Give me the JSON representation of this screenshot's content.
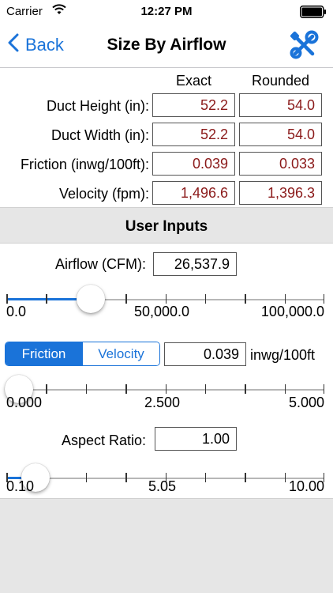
{
  "status_bar": {
    "carrier": "Carrier",
    "time": "12:27 PM",
    "icons": [
      "wifi-icon",
      "battery-icon"
    ]
  },
  "nav": {
    "back_label": "Back",
    "title": "Size By Airflow",
    "tools_icon": "wrench-screwdriver-icon",
    "accent_color": "#1a73d9"
  },
  "results": {
    "columns": [
      "Exact",
      "Rounded"
    ],
    "rows": [
      {
        "label": "Duct Height (in):",
        "exact": "52.2",
        "rounded": "54.0"
      },
      {
        "label": "Duct Width (in):",
        "exact": "52.2",
        "rounded": "54.0"
      },
      {
        "label": "Friction (inwg/100ft):",
        "exact": "0.039",
        "rounded": "0.033"
      },
      {
        "label": "Velocity (fpm):",
        "exact": "1,496.6",
        "rounded": "1,396.3"
      }
    ],
    "value_color": "#8b1a1a"
  },
  "inputs": {
    "section_title": "User Inputs",
    "airflow": {
      "label": "Airflow (CFM):",
      "value": "26,537.9",
      "slider": {
        "min_label": "0.0",
        "mid_label": "50,000.0",
        "max_label": "100,000.0",
        "min": 0,
        "max": 100000,
        "value": 26537.9
      }
    },
    "mode": {
      "options": [
        "Friction",
        "Velocity"
      ],
      "selected": "Friction",
      "value": "0.039",
      "unit": "inwg/100ft",
      "slider": {
        "min_label": "0.000",
        "mid_label": "2.500",
        "max_label": "5.000",
        "min": 0,
        "max": 5,
        "value": 0.039
      }
    },
    "aspect_ratio": {
      "label": "Aspect Ratio:",
      "value": "1.00",
      "slider": {
        "min_label": "0.10",
        "mid_label": "5.05",
        "max_label": "10.00",
        "min": 0.1,
        "max": 10,
        "value": 1.0
      }
    }
  }
}
